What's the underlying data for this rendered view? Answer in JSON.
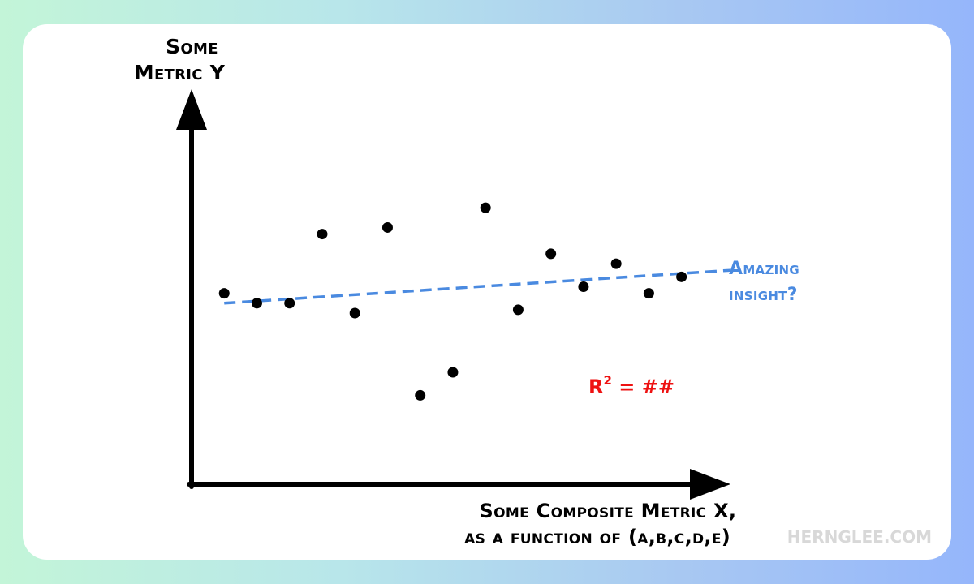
{
  "chart_data": {
    "type": "scatter",
    "ylabel_lines": [
      "Some",
      "Metric Y"
    ],
    "xlabel_lines": [
      "Some Composite Metric X,",
      "as a function of (a,b,c,d,e)"
    ],
    "points": [
      {
        "x": 1,
        "y": 58
      },
      {
        "x": 2,
        "y": 55
      },
      {
        "x": 3,
        "y": 55
      },
      {
        "x": 4,
        "y": 76
      },
      {
        "x": 5,
        "y": 52
      },
      {
        "x": 6,
        "y": 78
      },
      {
        "x": 7,
        "y": 27
      },
      {
        "x": 8,
        "y": 34
      },
      {
        "x": 9,
        "y": 84
      },
      {
        "x": 10,
        "y": 53
      },
      {
        "x": 11,
        "y": 70
      },
      {
        "x": 12,
        "y": 60
      },
      {
        "x": 13,
        "y": 67
      },
      {
        "x": 14,
        "y": 58
      },
      {
        "x": 15,
        "y": 63
      }
    ],
    "trendline": {
      "x": [
        1,
        16.5
      ],
      "y": [
        55,
        65
      ]
    },
    "trend_annotation_lines": [
      "Amazing",
      "insight?"
    ],
    "r2_annotation": {
      "base": "R",
      "superscript": "2",
      "rest": " = ##"
    },
    "xlim": [
      0,
      16.5
    ],
    "ylim": [
      0,
      120
    ],
    "grid": false,
    "colors": {
      "points": "#000000",
      "axes": "#000000",
      "trendline": "#4a8ae0",
      "r2": "#ee1111",
      "watermark": "#d8d8d8"
    }
  },
  "watermark": "HERNGLEE.COM"
}
